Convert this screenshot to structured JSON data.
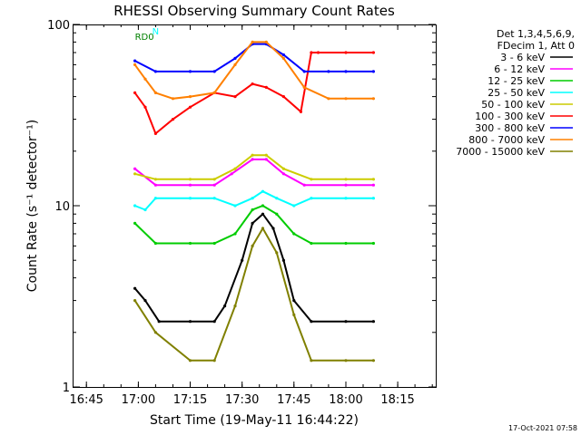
{
  "chart_data": {
    "type": "line",
    "title": "RHESSI Observing Summary Count Rates",
    "xlabel": "Start Time (19-May-11 16:44:22)",
    "ylabel": "Count Rate (s⁻¹ detector⁻¹)",
    "x_scale": "time",
    "y_scale": "log",
    "xlim": [
      "16:41",
      "18:26"
    ],
    "ylim": [
      1,
      100
    ],
    "x_ticks": [
      "16:45",
      "17:00",
      "17:15",
      "17:30",
      "17:45",
      "18:00",
      "18:15"
    ],
    "y_ticks": [
      "1",
      "10",
      "100"
    ],
    "grid": false,
    "legend": {
      "position": "right",
      "header": [
        "Det 1,3,4,5,6,9,",
        "FDecim 1, Att 0"
      ],
      "entries": [
        {
          "label": "3 - 6 keV",
          "color": "#000000"
        },
        {
          "label": "6 - 12 keV",
          "color": "#ff00ff"
        },
        {
          "label": "12 - 25 keV",
          "color": "#00cc00"
        },
        {
          "label": "25 - 50 keV",
          "color": "#00ffff"
        },
        {
          "label": "50 - 100 keV",
          "color": "#cccc00"
        },
        {
          "label": "100 - 300 keV",
          "color": "#ff0000"
        },
        {
          "label": "300 - 800 keV",
          "color": "#0000ff"
        },
        {
          "label": "800 - 7000 keV",
          "color": "#ff8000"
        },
        {
          "label": "7000 - 15000 keV",
          "color": "#808000"
        }
      ]
    },
    "series": [
      {
        "name": "3 - 6 keV",
        "color": "#000000",
        "x": [
          "16:59",
          "17:02",
          "17:06",
          "17:15",
          "17:22",
          "17:25",
          "17:30",
          "17:33",
          "17:36",
          "17:39",
          "17:42",
          "17:45",
          "17:50",
          "18:00",
          "18:08"
        ],
        "y": [
          3.5,
          3.0,
          2.3,
          2.3,
          2.3,
          2.8,
          5.0,
          8.0,
          9.0,
          7.5,
          5.0,
          3.0,
          2.3,
          2.3,
          2.3
        ]
      },
      {
        "name": "6 - 12 keV",
        "color": "#ff00ff",
        "x": [
          "16:59",
          "17:05",
          "17:15",
          "17:22",
          "17:27",
          "17:33",
          "17:37",
          "17:42",
          "17:48",
          "18:00",
          "18:08"
        ],
        "y": [
          16,
          13,
          13,
          13,
          15,
          18,
          18,
          15,
          13,
          13,
          13
        ]
      },
      {
        "name": "12 - 25 keV",
        "color": "#00cc00",
        "x": [
          "16:59",
          "17:05",
          "17:15",
          "17:22",
          "17:28",
          "17:33",
          "17:36",
          "17:40",
          "17:45",
          "17:50",
          "18:00",
          "18:08"
        ],
        "y": [
          8,
          6.2,
          6.2,
          6.2,
          7.0,
          9.5,
          10,
          9.0,
          7.0,
          6.2,
          6.2,
          6.2
        ]
      },
      {
        "name": "25 - 50 keV",
        "color": "#00ffff",
        "x": [
          "16:59",
          "17:02",
          "17:05",
          "17:15",
          "17:22",
          "17:28",
          "17:33",
          "17:36",
          "17:40",
          "17:45",
          "17:50",
          "18:00",
          "18:08"
        ],
        "y": [
          10,
          9.5,
          11,
          11,
          11,
          10,
          11,
          12,
          11,
          10,
          11,
          11,
          11
        ]
      },
      {
        "name": "50 - 100 keV",
        "color": "#cccc00",
        "x": [
          "16:59",
          "17:05",
          "17:15",
          "17:22",
          "17:28",
          "17:33",
          "17:37",
          "17:42",
          "17:50",
          "18:00",
          "18:08"
        ],
        "y": [
          15,
          14,
          14,
          14,
          16,
          19,
          19,
          16,
          14,
          14,
          14
        ]
      },
      {
        "name": "100 - 300 keV",
        "color": "#ff0000",
        "x": [
          "16:59",
          "17:02",
          "17:05",
          "17:10",
          "17:15",
          "17:22",
          "17:28",
          "17:33",
          "17:37",
          "17:42",
          "17:47",
          "17:50",
          "17:52",
          "18:00",
          "18:08"
        ],
        "y": [
          42,
          35,
          25,
          30,
          35,
          42,
          40,
          47,
          45,
          40,
          33,
          70,
          70,
          70,
          70
        ]
      },
      {
        "name": "300 - 800 keV",
        "color": "#0000ff",
        "x": [
          "16:59",
          "17:05",
          "17:15",
          "17:22",
          "17:28",
          "17:33",
          "17:37",
          "17:42",
          "17:48",
          "17:55",
          "18:00",
          "18:08"
        ],
        "y": [
          63,
          55,
          55,
          55,
          65,
          78,
          78,
          68,
          55,
          55,
          55,
          55
        ]
      },
      {
        "name": "800 - 7000 keV",
        "color": "#ff8000",
        "x": [
          "16:59",
          "17:02",
          "17:05",
          "17:10",
          "17:15",
          "17:22",
          "17:28",
          "17:33",
          "17:37",
          "17:42",
          "17:48",
          "17:55",
          "18:00",
          "18:08"
        ],
        "y": [
          60,
          50,
          42,
          39,
          40,
          42,
          60,
          80,
          80,
          65,
          45,
          39,
          39,
          39
        ]
      },
      {
        "name": "7000 - 15000 keV",
        "color": "#808000",
        "x": [
          "16:59",
          "17:05",
          "17:15",
          "17:22",
          "17:28",
          "17:33",
          "17:36",
          "17:40",
          "17:45",
          "17:50",
          "18:00",
          "18:08"
        ],
        "y": [
          3.0,
          2.0,
          1.4,
          1.4,
          2.8,
          6.0,
          7.5,
          5.5,
          2.5,
          1.4,
          1.4,
          1.4
        ]
      }
    ],
    "annotations": [
      {
        "label": "RD0",
        "x": "16:59",
        "y": 82,
        "color": "#008000"
      },
      {
        "label": "N",
        "x": "17:04",
        "y": 88,
        "color": "#00ffff"
      }
    ]
  },
  "footer": {
    "date": "17-Oct-2021 07:58"
  }
}
